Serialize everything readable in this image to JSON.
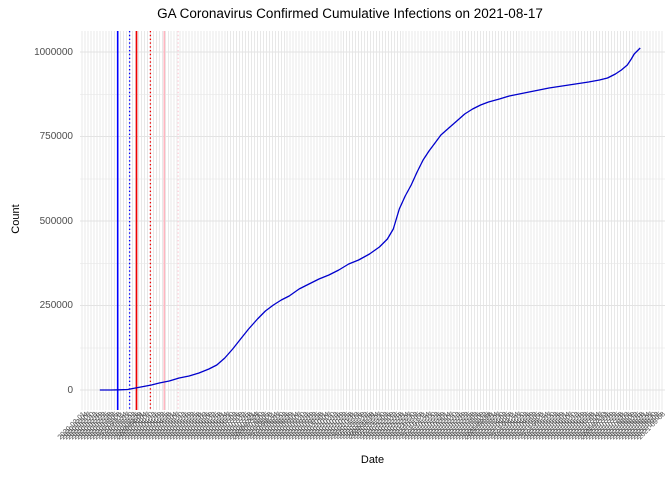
{
  "chart": {
    "title": "GA Coronavirus Confirmed Cumulative Infections on 2021-08-17",
    "xlabel": "Date",
    "ylabel": "Count"
  },
  "chart_data": {
    "type": "line",
    "title": "GA Coronavirus Confirmed Cumulative Infections on 2021-08-17",
    "xlabel": "Date",
    "ylabel": "Count",
    "ylim": [
      0,
      1050000
    ],
    "grid": "on",
    "legend": "none",
    "x_axis": {
      "start": "2020-02-01",
      "end": "2021-09-08",
      "tick_step_days": 3
    },
    "y_ticks_major": [
      0,
      250000,
      500000,
      750000,
      1000000
    ],
    "y_tick_labels": [
      "0",
      "250000",
      "500000",
      "750000",
      "1000000"
    ],
    "y_ticks_minor": [
      125000,
      375000,
      625000,
      875000
    ],
    "x_tick_labels": [
      "2020-02-01",
      "2020-02-04",
      "2020-02-07",
      "2020-02-10",
      "2020-02-13",
      "2020-02-16",
      "2020-02-19",
      "2020-02-22",
      "2020-02-25",
      "2020-02-28",
      "2020-03-02",
      "2020-03-05",
      "2020-03-08",
      "2020-03-11",
      "2020-03-14",
      "2020-03-17",
      "2020-03-20",
      "2020-03-23",
      "2020-03-26",
      "2020-03-29",
      "2020-04-01",
      "2020-04-04",
      "2020-04-07",
      "2020-04-10",
      "2020-04-13",
      "2020-04-16",
      "2020-04-19",
      "2020-04-22",
      "2020-04-25",
      "2020-04-28",
      "2020-05-01",
      "2020-05-04",
      "2020-05-07",
      "2020-05-10",
      "2020-05-13",
      "2020-05-16",
      "2020-05-19",
      "2020-05-22",
      "2020-05-25",
      "2020-05-28",
      "2020-05-31",
      "2020-06-03",
      "2020-06-06",
      "2020-06-09",
      "2020-06-12",
      "2020-06-15",
      "2020-06-18",
      "2020-06-21",
      "2020-06-24",
      "2020-06-27",
      "2020-06-30",
      "2020-07-03",
      "2020-07-06",
      "2020-07-09",
      "2020-07-12",
      "2020-07-15",
      "2020-07-18",
      "2020-07-21",
      "2020-07-24",
      "2020-07-27",
      "2020-07-30",
      "2020-08-02",
      "2020-08-05",
      "2020-08-08",
      "2020-08-11",
      "2020-08-14",
      "2020-08-17",
      "2020-08-20",
      "2020-08-23",
      "2020-08-26",
      "2020-08-29",
      "2020-09-01",
      "2020-09-04",
      "2020-09-07",
      "2020-09-10",
      "2020-09-13",
      "2020-09-16",
      "2020-09-19",
      "2020-09-22",
      "2020-09-25",
      "2020-09-28",
      "2020-10-01",
      "2020-10-04",
      "2020-10-07",
      "2020-10-10",
      "2020-10-13",
      "2020-10-16",
      "2020-10-19",
      "2020-10-22",
      "2020-10-25",
      "2020-10-28",
      "2020-10-31",
      "2020-11-03",
      "2020-11-06",
      "2020-11-09",
      "2020-11-12",
      "2020-11-15",
      "2020-11-18",
      "2020-11-21",
      "2020-11-24",
      "2020-11-27",
      "2020-11-30",
      "2020-12-03",
      "2020-12-06",
      "2020-12-09",
      "2020-12-12",
      "2020-12-15",
      "2020-12-18",
      "2020-12-21",
      "2020-12-24",
      "2020-12-27",
      "2020-12-30",
      "2021-01-02",
      "2021-01-05",
      "2021-01-08",
      "2021-01-11",
      "2021-01-14",
      "2021-01-17",
      "2021-01-20",
      "2021-01-23",
      "2021-01-26",
      "2021-01-29",
      "2021-02-01",
      "2021-02-04",
      "2021-02-07",
      "2021-02-10",
      "2021-02-13",
      "2021-02-16",
      "2021-02-19",
      "2021-02-22",
      "2021-02-25",
      "2021-02-28",
      "2021-03-03",
      "2021-03-06",
      "2021-03-09",
      "2021-03-12",
      "2021-03-15",
      "2021-03-18",
      "2021-03-21",
      "2021-03-24",
      "2021-03-27",
      "2021-03-30",
      "2021-04-02",
      "2021-04-05",
      "2021-04-08",
      "2021-04-11",
      "2021-04-14",
      "2021-04-17",
      "2021-04-20",
      "2021-04-23",
      "2021-04-26",
      "2021-04-29",
      "2021-05-02",
      "2021-05-05",
      "2021-05-08",
      "2021-05-11",
      "2021-05-14",
      "2021-05-17",
      "2021-05-20",
      "2021-05-23",
      "2021-05-26",
      "2021-05-29",
      "2021-06-01",
      "2021-06-04",
      "2021-06-07",
      "2021-06-10",
      "2021-06-13",
      "2021-06-16",
      "2021-06-19",
      "2021-06-22",
      "2021-06-25",
      "2021-06-28",
      "2021-07-01",
      "2021-07-04",
      "2021-07-07",
      "2021-07-10",
      "2021-07-13",
      "2021-07-16",
      "2021-07-19",
      "2021-07-22",
      "2021-07-25",
      "2021-07-28",
      "2021-07-31",
      "2021-08-03",
      "2021-08-06",
      "2021-08-09",
      "2021-08-12",
      "2021-08-15",
      "2021-08-18",
      "2021-08-21",
      "2021-08-24",
      "2021-08-27",
      "2021-08-30",
      "2021-09-02",
      "2021-09-05",
      "2021-09-08"
    ],
    "series": [
      {
        "name": "confirmed cumulative infections",
        "color": "#0000cd",
        "points": [
          [
            "2020-02-19",
            0
          ],
          [
            "2020-03-01",
            100
          ],
          [
            "2020-03-10",
            700
          ],
          [
            "2020-03-18",
            1600
          ],
          [
            "2020-03-26",
            6000
          ],
          [
            "2020-04-03",
            10400
          ],
          [
            "2020-04-11",
            14800
          ],
          [
            "2020-04-19",
            20700
          ],
          [
            "2020-04-29",
            26600
          ],
          [
            "2020-05-09",
            35500
          ],
          [
            "2020-05-19",
            41400
          ],
          [
            "2020-05-29",
            50300
          ],
          [
            "2020-06-08",
            62100
          ],
          [
            "2020-06-16",
            74000
          ],
          [
            "2020-06-24",
            94700
          ],
          [
            "2020-07-02",
            121300
          ],
          [
            "2020-07-10",
            150900
          ],
          [
            "2020-07-18",
            180500
          ],
          [
            "2020-07-27",
            210100
          ],
          [
            "2020-08-04",
            233700
          ],
          [
            "2020-08-12",
            251500
          ],
          [
            "2020-08-20",
            266300
          ],
          [
            "2020-08-28",
            278100
          ],
          [
            "2020-09-07",
            298900
          ],
          [
            "2020-09-17",
            313700
          ],
          [
            "2020-09-27",
            328500
          ],
          [
            "2020-10-07",
            340300
          ],
          [
            "2020-10-17",
            355100
          ],
          [
            "2020-10-27",
            372800
          ],
          [
            "2020-11-06",
            384700
          ],
          [
            "2020-11-17",
            402400
          ],
          [
            "2020-11-27",
            423100
          ],
          [
            "2020-12-05",
            446700
          ],
          [
            "2020-12-11",
            476300
          ],
          [
            "2020-12-17",
            535600
          ],
          [
            "2020-12-23",
            574000
          ],
          [
            "2020-12-29",
            606500
          ],
          [
            "2021-01-04",
            645000
          ],
          [
            "2021-01-10",
            680500
          ],
          [
            "2021-01-16",
            707100
          ],
          [
            "2021-01-22",
            730800
          ],
          [
            "2021-01-28",
            754400
          ],
          [
            "2021-02-05",
            775100
          ],
          [
            "2021-02-13",
            795900
          ],
          [
            "2021-02-21",
            816600
          ],
          [
            "2021-03-01",
            831400
          ],
          [
            "2021-03-09",
            843200
          ],
          [
            "2021-03-17",
            852100
          ],
          [
            "2021-03-28",
            861000
          ],
          [
            "2021-04-07",
            869800
          ],
          [
            "2021-04-17",
            875700
          ],
          [
            "2021-04-27",
            881700
          ],
          [
            "2021-05-07",
            887600
          ],
          [
            "2021-05-17",
            893500
          ],
          [
            "2021-05-27",
            897900
          ],
          [
            "2021-06-06",
            902400
          ],
          [
            "2021-06-16",
            906800
          ],
          [
            "2021-06-26",
            911200
          ],
          [
            "2021-07-07",
            917200
          ],
          [
            "2021-07-15",
            923100
          ],
          [
            "2021-07-23",
            934900
          ],
          [
            "2021-07-29",
            946700
          ],
          [
            "2021-08-04",
            961500
          ],
          [
            "2021-08-08",
            979200
          ],
          [
            "2021-08-11",
            994000
          ],
          [
            "2021-08-14",
            1003000
          ],
          [
            "2021-08-17",
            1011800
          ]
        ]
      }
    ],
    "event_lines": [
      {
        "date": "2020-03-08",
        "color": "#0000ff",
        "style": "solid"
      },
      {
        "date": "2020-03-20",
        "color": "#0000ff",
        "style": "dotted"
      },
      {
        "date": "2020-03-27",
        "color": "#ee0000",
        "style": "solid"
      },
      {
        "date": "2020-04-10",
        "color": "#ee0000",
        "style": "dotted"
      },
      {
        "date": "2020-04-24",
        "color": "#ffb6c1",
        "style": "solid"
      },
      {
        "date": "2020-05-08",
        "color": "#ffd0da",
        "style": "dotted"
      }
    ],
    "colors": {
      "line": "#0000cd",
      "grid_major": "#e3e3e3",
      "grid_minor": "#f0f0f0",
      "grid_vertical": "#e8e8e8",
      "tick_text": "#4d4d4d",
      "title_text": "#000000",
      "background": "#ffffff"
    }
  }
}
